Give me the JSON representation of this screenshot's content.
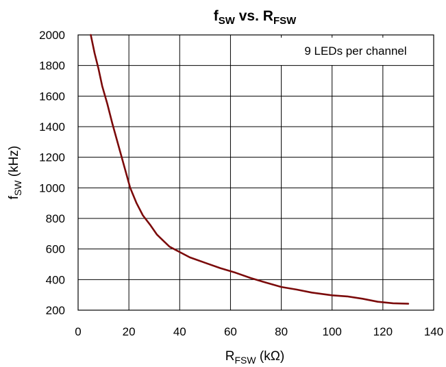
{
  "chart_data": {
    "type": "line",
    "title": {
      "main": "f",
      "main_sub": "SW",
      "mid": " vs. R",
      "end_sub": "FSW"
    },
    "xlabel": {
      "main": "R",
      "sub": "FSW",
      "unit": " (kΩ)"
    },
    "ylabel": {
      "main": "f",
      "sub": "SW",
      "unit": " (kHz)"
    },
    "xlim": [
      0,
      140
    ],
    "ylim": [
      200,
      2000
    ],
    "xticks": [
      "0",
      "20",
      "40",
      "60",
      "80",
      "100",
      "120",
      "140"
    ],
    "yticks": [
      "200",
      "400",
      "600",
      "800",
      "1000",
      "1200",
      "1400",
      "1600",
      "1800",
      "2000"
    ],
    "grid": true,
    "annotation": "9 LEDs per channel",
    "series": [
      {
        "color": "#7b0a0a",
        "x": [
          5,
          6.5,
          8,
          9.5,
          11.5,
          13.5,
          16,
          18.5,
          20.5,
          23,
          25.5,
          28.5,
          31,
          33.5,
          36,
          40,
          44,
          50,
          56,
          62,
          68,
          74,
          80,
          86,
          92,
          100,
          106,
          112,
          118,
          124,
          130
        ],
        "y": [
          2000,
          1880,
          1780,
          1665,
          1550,
          1420,
          1270,
          1120,
          1000,
          900,
          820,
          755,
          695,
          655,
          615,
          580,
          545,
          510,
          475,
          445,
          410,
          380,
          352,
          335,
          315,
          297,
          290,
          275,
          255,
          245,
          242
        ]
      }
    ]
  }
}
